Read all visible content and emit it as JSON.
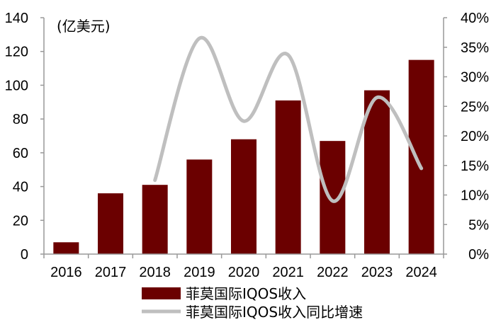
{
  "chart_data": {
    "type": "bar",
    "unit_label": "(亿美元)",
    "categories": [
      "2016",
      "2017",
      "2018",
      "2019",
      "2020",
      "2021",
      "2022",
      "2023",
      "2024"
    ],
    "series": [
      {
        "name": "菲莫国际IQOS收入",
        "type": "bar",
        "axis": "left",
        "color": "#6b0000",
        "values": [
          7,
          36,
          41,
          56,
          68,
          91,
          67,
          97,
          115
        ]
      },
      {
        "name": "菲莫国际IQOS收入同比增速",
        "type": "line",
        "axis": "right",
        "smooth": true,
        "color": "#bfbfbf",
        "values": [
          null,
          null,
          0.125,
          0.365,
          0.225,
          0.337,
          0.09,
          0.265,
          0.145
        ]
      }
    ],
    "y_left": {
      "ylim": [
        0,
        140
      ],
      "ticks": [
        "0",
        "20",
        "40",
        "60",
        "80",
        "100",
        "120",
        "140"
      ]
    },
    "y_right": {
      "ylim": [
        0,
        0.4
      ],
      "ticks": [
        "0%",
        "5%",
        "10%",
        "15%",
        "20%",
        "25%",
        "30%",
        "35%",
        "40%"
      ]
    },
    "grid": false,
    "legend_position": "bottom"
  }
}
